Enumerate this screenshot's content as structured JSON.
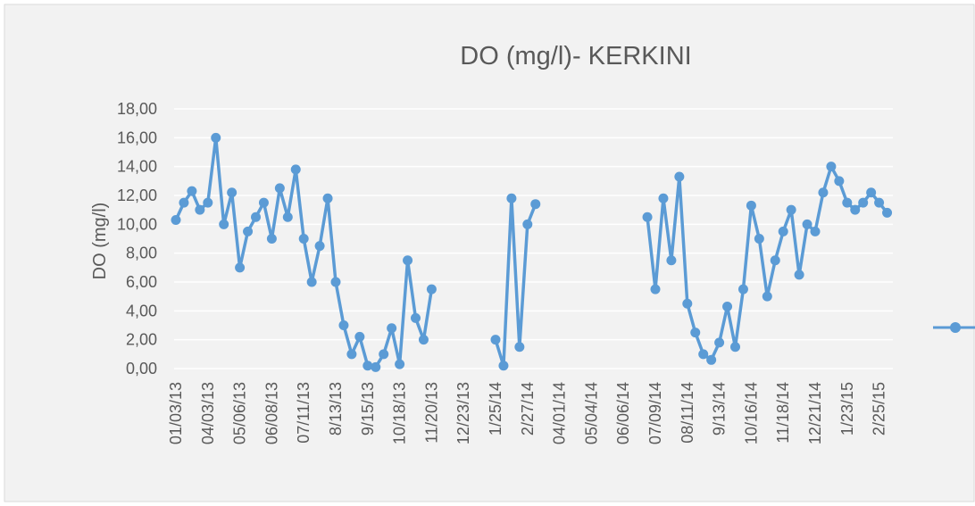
{
  "chart_data": {
    "type": "line",
    "title": "DO (mg/l)- KERKINI",
    "y_label": "DO (mg/l)",
    "categories": [
      "01/03/13",
      null,
      null,
      null,
      "04/03/13",
      null,
      null,
      null,
      "05/06/13",
      null,
      null,
      null,
      "06/08/13",
      null,
      null,
      null,
      "07/11/13",
      null,
      null,
      null,
      "8/13/13",
      null,
      null,
      null,
      "9/15/13",
      null,
      null,
      null,
      "10/18/13",
      null,
      null,
      null,
      "11/20/13",
      null,
      null,
      null,
      "12/23/13",
      null,
      null,
      null,
      "1/25/14",
      null,
      null,
      null,
      "2/27/14",
      null,
      null,
      null,
      "04/01/14",
      null,
      null,
      null,
      "05/04/14",
      null,
      null,
      null,
      "06/06/14",
      null,
      null,
      null,
      "07/09/14",
      null,
      null,
      null,
      "08/11/14",
      null,
      null,
      null,
      "9/13/14",
      null,
      null,
      null,
      "10/16/14",
      null,
      null,
      null,
      "11/18/14",
      null,
      null,
      null,
      "12/21/14",
      null,
      null,
      null,
      "1/23/15",
      null,
      null,
      null,
      "2/25/15",
      null
    ],
    "series": [
      {
        "color": "#5b9bd5",
        "values": [
          10.3,
          11.5,
          12.3,
          11.0,
          11.5,
          16.0,
          10.0,
          12.2,
          7.0,
          9.5,
          10.5,
          11.5,
          9.0,
          12.5,
          10.5,
          13.8,
          9.0,
          6.0,
          8.5,
          11.8,
          6.0,
          3.0,
          1.0,
          2.2,
          0.2,
          0.1,
          1.0,
          2.8,
          0.3,
          7.5,
          3.5,
          2.0,
          5.5,
          null,
          null,
          null,
          null,
          null,
          null,
          null,
          2.0,
          0.2,
          11.8,
          1.5,
          10.0,
          11.4,
          null,
          null,
          null,
          null,
          null,
          null,
          null,
          null,
          null,
          null,
          null,
          null,
          null,
          10.5,
          5.5,
          11.8,
          7.5,
          13.3,
          4.5,
          2.5,
          1.0,
          0.6,
          1.8,
          4.3,
          1.5,
          5.5,
          11.3,
          9.0,
          5.0,
          7.5,
          9.5,
          11.0,
          6.5,
          10.0,
          9.5,
          12.2,
          14.0,
          13.0,
          11.5,
          11.0,
          11.5,
          12.2,
          11.5,
          10.8
        ]
      }
    ],
    "ylim": [
      0,
      18
    ],
    "yticks": [
      {
        "value": 0,
        "label": "0,00"
      },
      {
        "value": 2,
        "label": "2,00"
      },
      {
        "value": 4,
        "label": "4,00"
      },
      {
        "value": 6,
        "label": "6,00"
      },
      {
        "value": 8,
        "label": "8,00"
      },
      {
        "value": 10,
        "label": "10,00"
      },
      {
        "value": 12,
        "label": "12,00"
      },
      {
        "value": 14,
        "label": "14,00"
      },
      {
        "value": 16,
        "label": "16,00"
      },
      {
        "value": 18,
        "label": "18,00"
      }
    ],
    "grid": true
  }
}
